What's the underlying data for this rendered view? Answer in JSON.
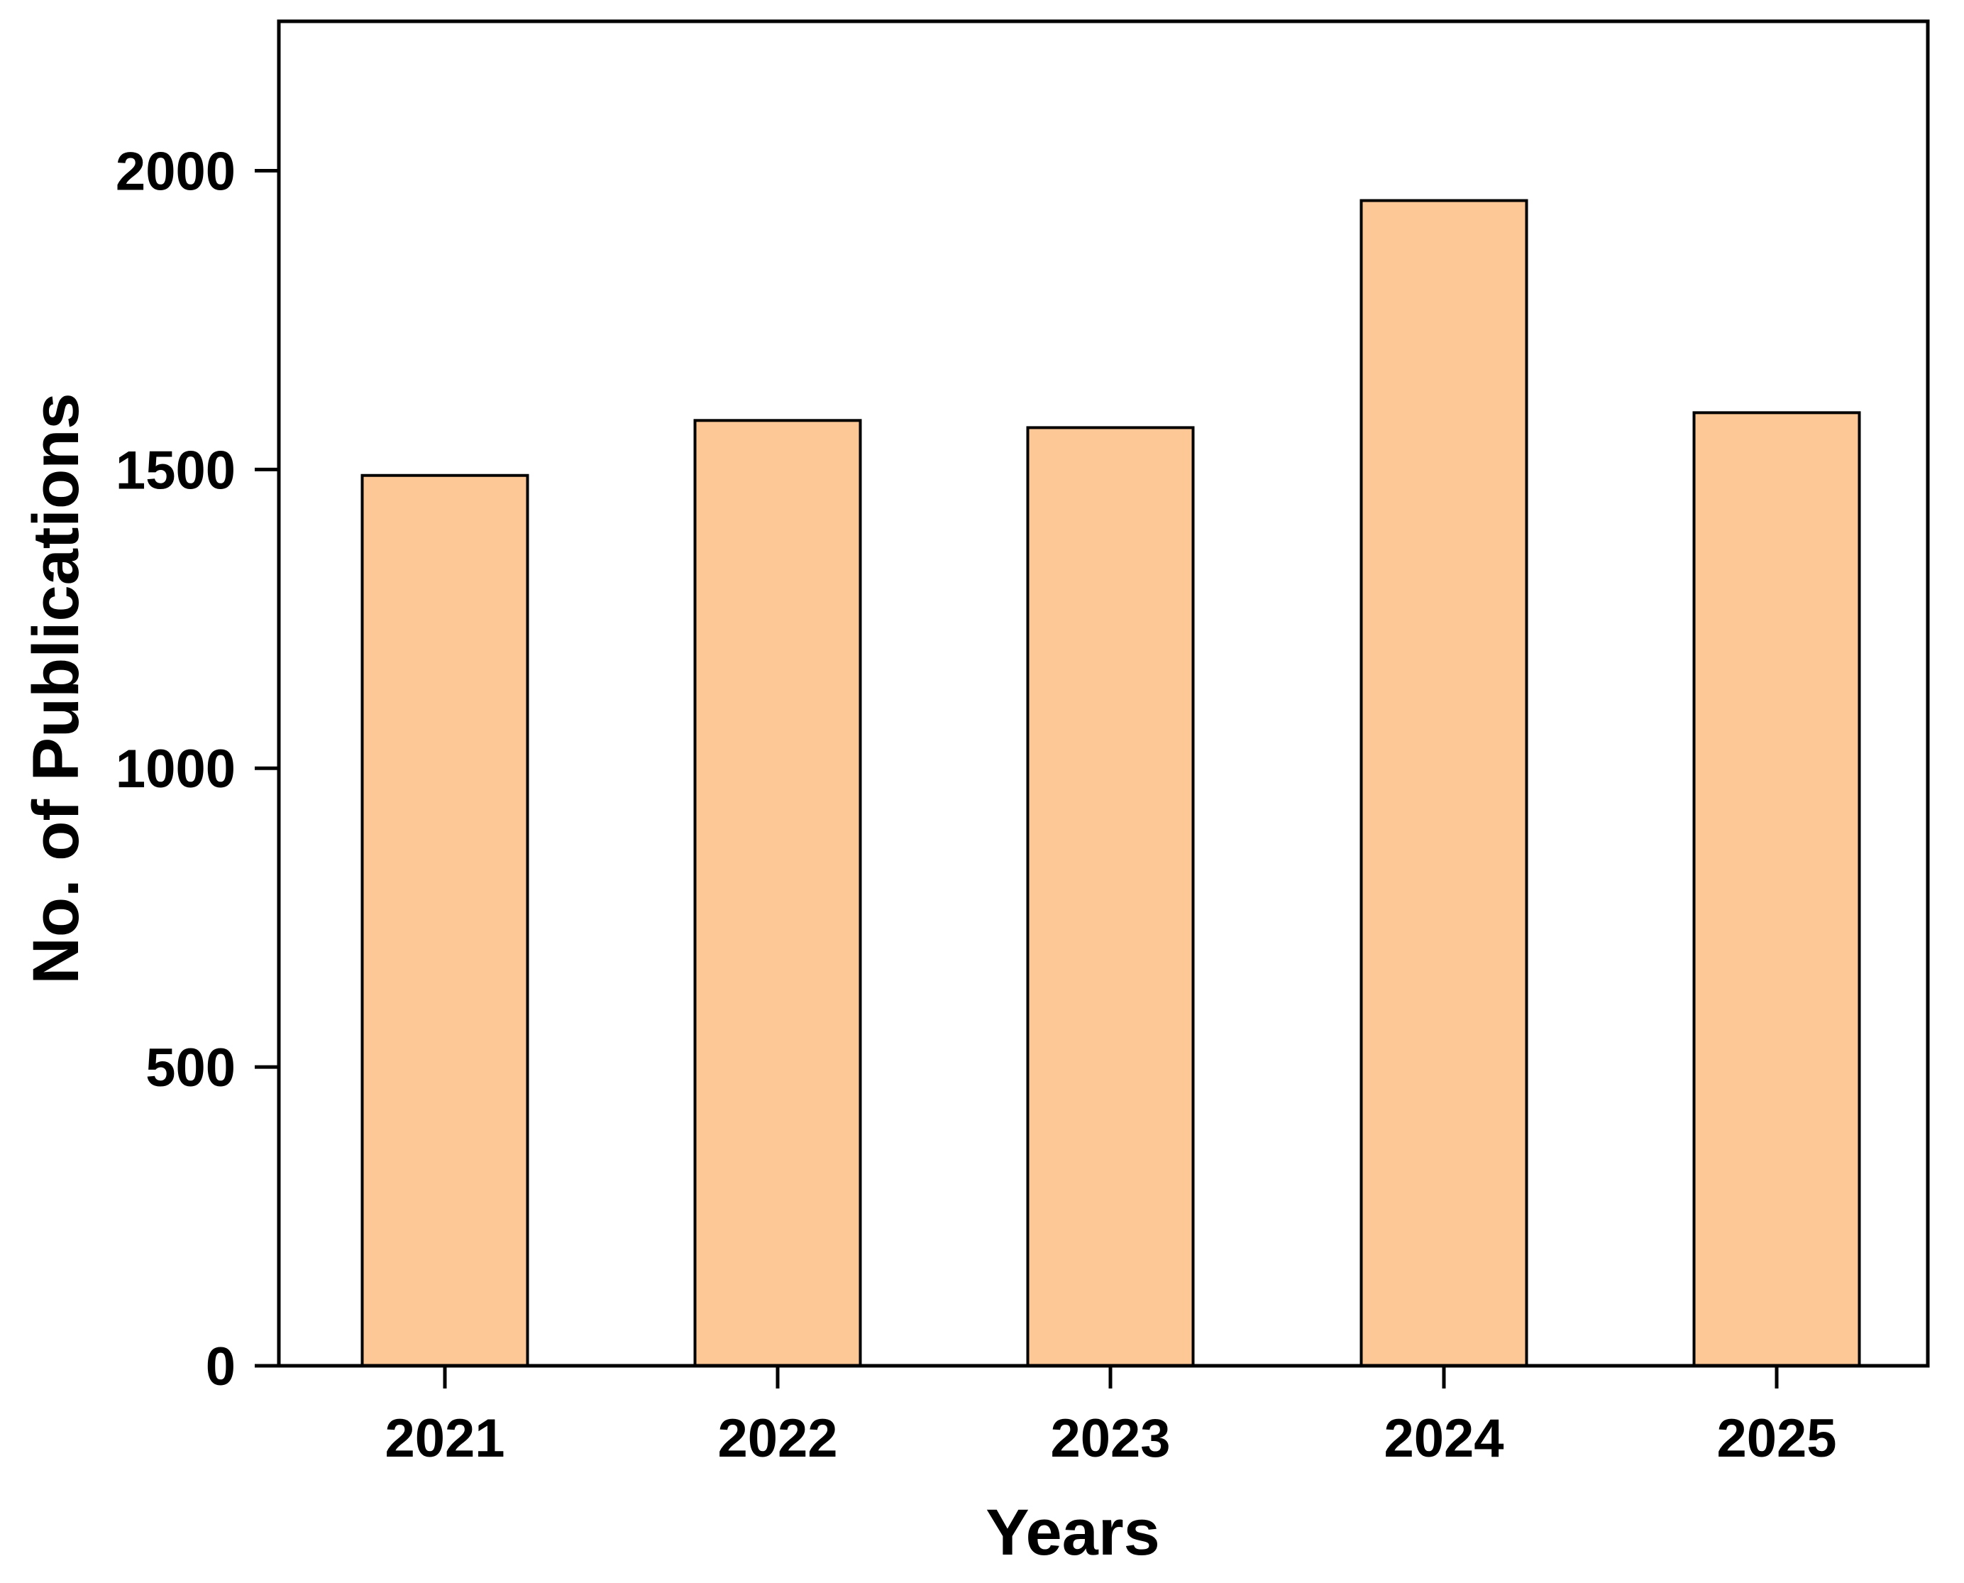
{
  "chart_data": {
    "type": "bar",
    "title": "",
    "xlabel": "Years",
    "ylabel": "No. of Publications",
    "categories": [
      "2021",
      "2022",
      "2023",
      "2024",
      "2025"
    ],
    "values": [
      1490,
      1582,
      1570,
      1950,
      1595
    ],
    "ylim": [
      0,
      2250
    ],
    "yticks": [
      0,
      500,
      1000,
      1500,
      2000
    ],
    "grid": false,
    "legend": "none",
    "bar_color": "#FDC895",
    "bar_edge_color": "#000000"
  }
}
